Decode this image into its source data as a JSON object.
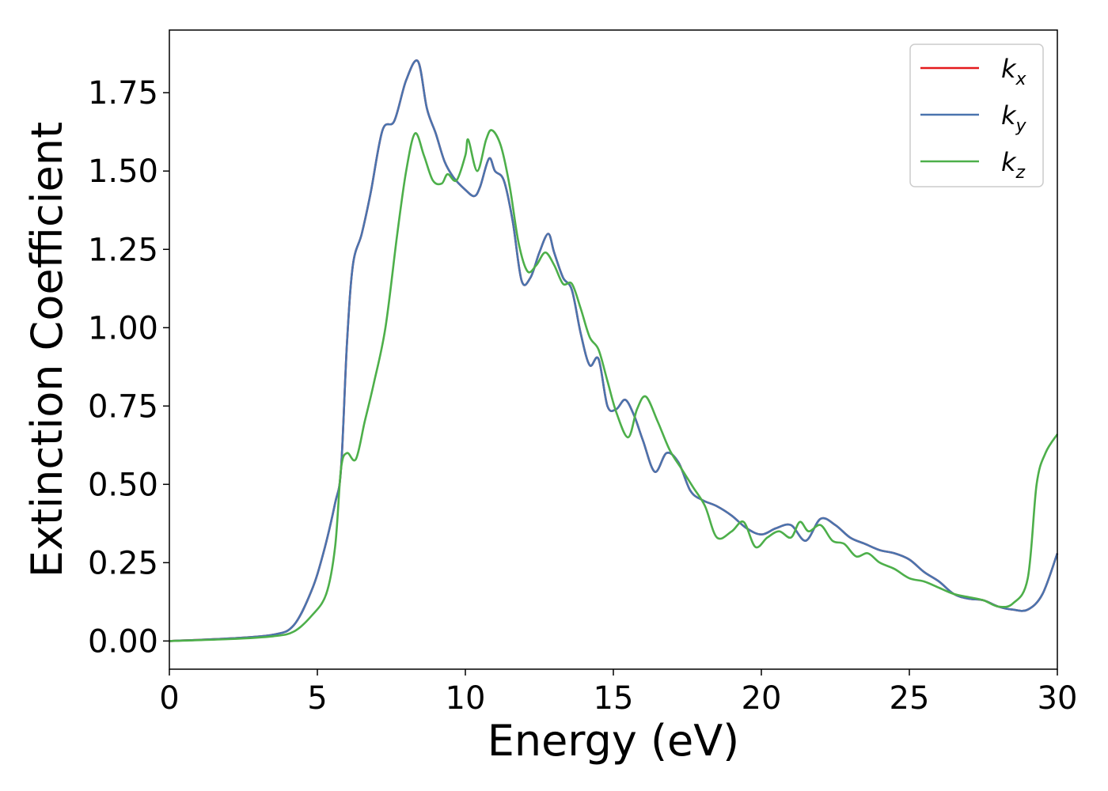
{
  "chart_data": {
    "type": "line",
    "xlabel": "Energy (eV)",
    "ylabel": "Extinction Coefficient",
    "xlim": [
      0,
      30
    ],
    "ylim": [
      -0.09,
      1.95
    ],
    "x_ticks": [
      "0",
      "5",
      "10",
      "15",
      "20",
      "25",
      "30"
    ],
    "y_ticks": [
      "0.00",
      "0.25",
      "0.50",
      "0.75",
      "1.00",
      "1.25",
      "1.50",
      "1.75"
    ],
    "grid": false,
    "legend_position": "top-right",
    "series": [
      {
        "name": "k_x",
        "legend_main": "k",
        "legend_sub": "x",
        "color": "#e41a1c",
        "x": [
          0,
          2,
          3.5,
          4.2,
          4.8,
          5.2,
          5.6,
          5.8,
          6.0,
          6.2,
          6.5,
          6.8,
          7.2,
          7.6,
          8.0,
          8.4,
          8.7,
          9.0,
          9.3,
          9.6,
          10.0,
          10.3,
          10.5,
          10.8,
          11.0,
          11.3,
          11.6,
          11.9,
          12.2,
          12.5,
          12.8,
          13.0,
          13.3,
          13.6,
          13.9,
          14.2,
          14.5,
          14.8,
          15.1,
          15.4,
          15.7,
          16.0,
          16.4,
          16.8,
          17.2,
          17.6,
          18.0,
          18.5,
          19.0,
          19.5,
          20.0,
          20.5,
          21.0,
          21.5,
          22.0,
          22.5,
          23.0,
          23.5,
          24.0,
          24.5,
          25.0,
          25.5,
          26.0,
          26.5,
          27.0,
          27.5,
          28.0,
          28.5,
          29.0,
          29.5,
          30.0
        ],
        "y": [
          0,
          0.008,
          0.02,
          0.05,
          0.16,
          0.28,
          0.44,
          0.55,
          0.95,
          1.2,
          1.3,
          1.43,
          1.63,
          1.66,
          1.79,
          1.85,
          1.7,
          1.62,
          1.53,
          1.48,
          1.44,
          1.42,
          1.45,
          1.54,
          1.5,
          1.47,
          1.34,
          1.15,
          1.16,
          1.24,
          1.3,
          1.24,
          1.16,
          1.12,
          0.98,
          0.88,
          0.9,
          0.75,
          0.74,
          0.77,
          0.72,
          0.64,
          0.54,
          0.6,
          0.57,
          0.48,
          0.45,
          0.43,
          0.4,
          0.36,
          0.34,
          0.36,
          0.37,
          0.32,
          0.39,
          0.37,
          0.33,
          0.31,
          0.29,
          0.28,
          0.26,
          0.22,
          0.19,
          0.15,
          0.135,
          0.13,
          0.11,
          0.1,
          0.1,
          0.15,
          0.28
        ]
      },
      {
        "name": "k_y",
        "legend_main": "k",
        "legend_sub": "y",
        "color": "#4a74ae",
        "x": [
          0,
          2,
          3.5,
          4.2,
          4.8,
          5.2,
          5.6,
          5.8,
          6.0,
          6.2,
          6.5,
          6.8,
          7.2,
          7.6,
          8.0,
          8.4,
          8.7,
          9.0,
          9.3,
          9.6,
          10.0,
          10.3,
          10.5,
          10.8,
          11.0,
          11.3,
          11.6,
          11.9,
          12.2,
          12.5,
          12.8,
          13.0,
          13.3,
          13.6,
          13.9,
          14.2,
          14.5,
          14.8,
          15.1,
          15.4,
          15.7,
          16.0,
          16.4,
          16.8,
          17.2,
          17.6,
          18.0,
          18.5,
          19.0,
          19.5,
          20.0,
          20.5,
          21.0,
          21.5,
          22.0,
          22.5,
          23.0,
          23.5,
          24.0,
          24.5,
          25.0,
          25.5,
          26.0,
          26.5,
          27.0,
          27.5,
          28.0,
          28.5,
          29.0,
          29.5,
          30.0
        ],
        "y": [
          0,
          0.008,
          0.02,
          0.05,
          0.16,
          0.28,
          0.44,
          0.55,
          0.95,
          1.2,
          1.3,
          1.43,
          1.63,
          1.66,
          1.79,
          1.85,
          1.7,
          1.62,
          1.53,
          1.48,
          1.44,
          1.42,
          1.45,
          1.54,
          1.5,
          1.47,
          1.34,
          1.15,
          1.16,
          1.24,
          1.3,
          1.24,
          1.16,
          1.12,
          0.98,
          0.88,
          0.9,
          0.75,
          0.74,
          0.77,
          0.72,
          0.64,
          0.54,
          0.6,
          0.57,
          0.48,
          0.45,
          0.43,
          0.4,
          0.36,
          0.34,
          0.36,
          0.37,
          0.32,
          0.39,
          0.37,
          0.33,
          0.31,
          0.29,
          0.28,
          0.26,
          0.22,
          0.19,
          0.15,
          0.135,
          0.13,
          0.11,
          0.1,
          0.1,
          0.15,
          0.28
        ]
      },
      {
        "name": "k_z",
        "legend_main": "k",
        "legend_sub": "z",
        "color": "#4daf4a",
        "x": [
          0,
          2,
          3.5,
          4.2,
          4.8,
          5.3,
          5.6,
          5.8,
          6.0,
          6.3,
          6.6,
          6.9,
          7.3,
          7.7,
          8.0,
          8.3,
          8.6,
          8.9,
          9.2,
          9.4,
          9.7,
          10.0,
          10.1,
          10.4,
          10.7,
          10.9,
          11.2,
          11.5,
          11.8,
          12.1,
          12.4,
          12.7,
          13.0,
          13.3,
          13.6,
          13.9,
          14.2,
          14.5,
          14.8,
          15.1,
          15.5,
          15.8,
          16.1,
          16.5,
          16.9,
          17.3,
          17.7,
          18.1,
          18.5,
          19.0,
          19.4,
          19.8,
          20.2,
          20.6,
          21.0,
          21.3,
          21.6,
          22.0,
          22.4,
          22.8,
          23.2,
          23.6,
          24.0,
          24.5,
          25.0,
          25.5,
          26.0,
          26.5,
          27.0,
          27.5,
          28.0,
          28.5,
          29.0,
          29.3,
          29.6,
          30.0
        ],
        "y": [
          0,
          0.006,
          0.015,
          0.03,
          0.08,
          0.15,
          0.3,
          0.55,
          0.6,
          0.58,
          0.7,
          0.82,
          1.0,
          1.3,
          1.5,
          1.62,
          1.55,
          1.47,
          1.46,
          1.49,
          1.47,
          1.55,
          1.6,
          1.5,
          1.6,
          1.63,
          1.58,
          1.45,
          1.27,
          1.18,
          1.2,
          1.24,
          1.2,
          1.14,
          1.14,
          1.06,
          0.97,
          0.93,
          0.83,
          0.73,
          0.65,
          0.74,
          0.78,
          0.7,
          0.61,
          0.55,
          0.49,
          0.43,
          0.33,
          0.35,
          0.38,
          0.3,
          0.33,
          0.35,
          0.33,
          0.38,
          0.35,
          0.37,
          0.32,
          0.31,
          0.27,
          0.28,
          0.25,
          0.23,
          0.2,
          0.19,
          0.17,
          0.15,
          0.14,
          0.13,
          0.11,
          0.12,
          0.2,
          0.5,
          0.6,
          0.66
        ]
      }
    ]
  }
}
